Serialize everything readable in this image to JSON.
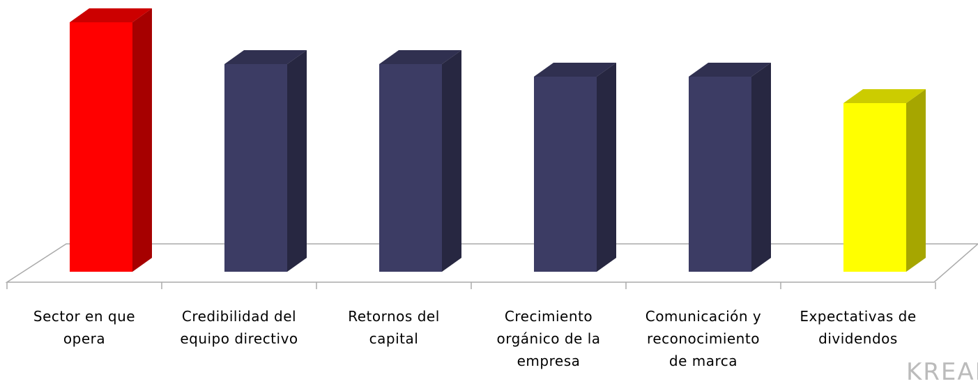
{
  "chart_data": {
    "type": "bar3d",
    "categories": [
      "Sector en que\nopera",
      "Credibilidad del\nequipo directivo",
      "Retornos del\ncapital",
      "Crecimiento\norgánico de la\nempresa",
      "Comunicación y\nreconocimiento\nde marca",
      "Expectativas de\ndividendos"
    ],
    "values": [
      358,
      298,
      298,
      280,
      280,
      242
    ],
    "colors": [
      "#ff0000",
      "#3c3c64",
      "#3c3c64",
      "#3c3c64",
      "#3c3c64",
      "#ffff00"
    ],
    "ylim": [
      0,
      400
    ],
    "watermark": "KREAB"
  }
}
